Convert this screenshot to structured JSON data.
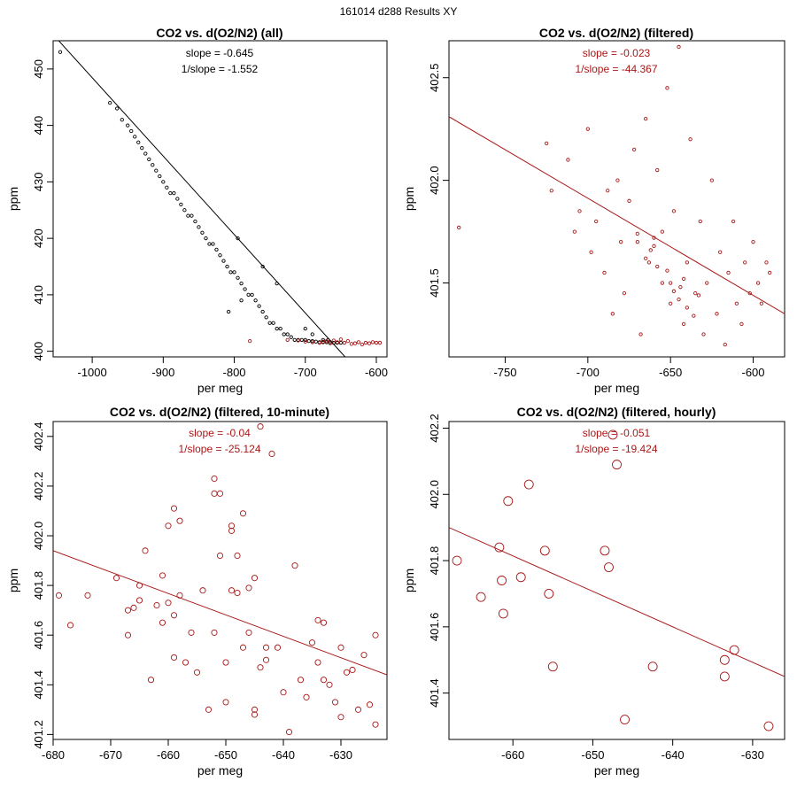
{
  "figure_title": "161014   d288   Results XY",
  "colors": {
    "black": "#000000",
    "red": "#a81818"
  },
  "chart_data": [
    {
      "type": "scatter",
      "title": "CO2 vs. d(O2/N2) (all)",
      "xlabel": "per meg",
      "ylabel": "ppm",
      "xlim": [
        -1055,
        -585
      ],
      "ylim": [
        399,
        455
      ],
      "xticks": [
        -1000,
        -900,
        -800,
        -700,
        -600
      ],
      "yticks": [
        400,
        410,
        420,
        430,
        440,
        450
      ],
      "annotation": [
        "slope = -0.645",
        "1/slope = -1.552"
      ],
      "annotation_color": "#000000",
      "fit_line": {
        "x": [
          -1050,
          -644
        ],
        "y": [
          455.4,
          399.0
        ],
        "color": "#000000"
      },
      "series": [
        {
          "name": "all",
          "color": "#000000",
          "x": [
            -1045,
            -975,
            -965,
            -958,
            -950,
            -945,
            -940,
            -935,
            -930,
            -925,
            -920,
            -915,
            -910,
            -905,
            -900,
            -895,
            -890,
            -885,
            -880,
            -875,
            -870,
            -865,
            -860,
            -855,
            -850,
            -845,
            -840,
            -835,
            -830,
            -825,
            -820,
            -815,
            -810,
            -805,
            -800,
            -795,
            -790,
            -785,
            -780,
            -775,
            -770,
            -765,
            -760,
            -755,
            -750,
            -745,
            -740,
            -735,
            -730,
            -725,
            -720,
            -715,
            -710,
            -705,
            -700,
            -695,
            -690,
            -685,
            -680,
            -675,
            -670,
            -665,
            -660,
            -655,
            -650,
            -808,
            -790,
            -795,
            -760,
            -740,
            -700,
            -690,
            -675,
            -668
          ],
          "y": [
            453,
            444,
            443,
            441,
            440,
            439,
            438,
            437,
            436,
            435,
            434,
            433,
            432,
            431,
            430,
            429,
            428,
            428,
            427,
            426,
            425,
            424,
            424,
            423,
            422,
            421,
            420,
            419,
            419,
            418,
            417,
            416,
            415,
            414,
            414,
            413,
            412,
            411,
            410,
            410,
            409,
            408,
            407,
            406,
            405,
            405,
            404,
            404,
            403,
            403,
            402.5,
            402,
            402,
            402,
            402,
            401.8,
            401.8,
            401.7,
            401.6,
            401.6,
            401.6,
            401.6,
            401.5,
            401.5,
            401.5,
            407,
            409,
            420,
            415,
            412,
            404,
            403,
            402,
            402
          ]
        },
        {
          "name": "filtered",
          "color": "#a81818",
          "x": [
            -778,
            -725,
            -710,
            -700,
            -690,
            -680,
            -675,
            -670,
            -665,
            -660,
            -655,
            -650,
            -645,
            -640,
            -635,
            -630,
            -625,
            -620,
            -615,
            -610,
            -605,
            -600,
            -595
          ],
          "y": [
            401.8,
            402.0,
            401.9,
            401.7,
            401.6,
            401.5,
            401.7,
            401.8,
            401.4,
            401.9,
            401.6,
            402.1,
            401.5,
            401.8,
            401.3,
            401.4,
            401.6,
            401.2,
            401.5,
            401.4,
            401.6,
            401.5,
            401.5
          ]
        }
      ]
    },
    {
      "type": "scatter",
      "title": "CO2 vs. d(O2/N2) (filtered)",
      "xlabel": "per meg",
      "ylabel": "ppm",
      "xlim": [
        -784,
        -581
      ],
      "ylim": [
        401.14,
        402.68
      ],
      "xticks": [
        -750,
        -700,
        -650,
        -600
      ],
      "yticks": [
        401.5,
        402.0,
        402.5
      ],
      "annotation": [
        "slope = -0.023",
        "1/slope = -44.367"
      ],
      "annotation_color": "#a81818",
      "fit_line": {
        "x": [
          -784,
          -581
        ],
        "y": [
          402.31,
          401.35
        ],
        "color": "#a81818"
      },
      "series": [
        {
          "name": "filtered",
          "color": "#a81818",
          "x": [
            -778,
            -725,
            -722,
            -712,
            -708,
            -705,
            -700,
            -698,
            -695,
            -690,
            -688,
            -685,
            -682,
            -680,
            -678,
            -675,
            -672,
            -670,
            -668,
            -665,
            -663,
            -660,
            -658,
            -655,
            -652,
            -650,
            -648,
            -645,
            -642,
            -640,
            -638,
            -635,
            -632,
            -630,
            -628,
            -625,
            -622,
            -620,
            -617,
            -615,
            -612,
            -610,
            -607,
            -605,
            -602,
            -600,
            -597,
            -595,
            -592,
            -590,
            -660,
            -655,
            -650,
            -645,
            -640,
            -665,
            -658,
            -648,
            -642,
            -636,
            -670,
            -662,
            -652,
            -644,
            -633
          ],
          "y": [
            401.77,
            402.18,
            401.95,
            402.1,
            401.75,
            401.85,
            402.25,
            401.65,
            401.8,
            401.55,
            401.95,
            401.35,
            402.0,
            401.7,
            401.45,
            401.9,
            402.15,
            401.7,
            401.25,
            402.3,
            401.6,
            401.72,
            402.05,
            401.5,
            402.45,
            401.4,
            401.85,
            402.65,
            401.3,
            401.6,
            402.2,
            401.45,
            401.8,
            401.25,
            401.5,
            402.0,
            401.35,
            401.65,
            401.2,
            401.55,
            401.8,
            401.4,
            401.3,
            401.6,
            401.45,
            401.7,
            401.5,
            401.4,
            401.6,
            401.55,
            401.68,
            401.75,
            401.5,
            401.42,
            401.38,
            401.62,
            401.58,
            401.46,
            401.52,
            401.34,
            401.74,
            401.66,
            401.56,
            401.48,
            401.44
          ]
        }
      ]
    },
    {
      "type": "scatter",
      "title": "CO2 vs. d(O2/N2) (filtered, 10-minute)",
      "xlabel": "per meg",
      "ylabel": "ppm",
      "xlim": [
        -680,
        -622
      ],
      "ylim": [
        401.18,
        402.46
      ],
      "xticks": [
        -680,
        -670,
        -660,
        -650,
        -640,
        -630
      ],
      "yticks": [
        401.2,
        401.4,
        401.6,
        401.8,
        402.0,
        402.2,
        402.4
      ],
      "annotation": [
        "slope = -0.04",
        "1/slope = -25.124"
      ],
      "annotation_color": "#a81818",
      "fit_line": {
        "x": [
          -680,
          -622
        ],
        "y": [
          401.94,
          401.44
        ],
        "color": "#a81818"
      },
      "series": [
        {
          "name": "10-minute",
          "color": "#a81818",
          "x": [
            -679,
            -677,
            -674,
            -669,
            -667,
            -667,
            -666,
            -665,
            -665,
            -664,
            -663,
            -662,
            -661,
            -661,
            -660,
            -660,
            -659,
            -659,
            -659,
            -658,
            -658,
            -657,
            -656,
            -655,
            -654,
            -653,
            -652,
            -652,
            -652,
            -651,
            -651,
            -650,
            -650,
            -649,
            -649,
            -649,
            -648,
            -648,
            -647,
            -647,
            -646,
            -646,
            -645,
            -645,
            -645,
            -644,
            -644,
            -643,
            -643,
            -642,
            -641,
            -640,
            -639,
            -638,
            -637,
            -636,
            -635,
            -634,
            -634,
            -633,
            -633,
            -632,
            -631,
            -630,
            -630,
            -629,
            -628,
            -627,
            -626,
            -625,
            -624,
            -624
          ],
          "y": [
            401.76,
            401.64,
            401.76,
            401.83,
            401.7,
            401.6,
            401.71,
            401.74,
            401.8,
            401.94,
            401.42,
            401.72,
            401.65,
            401.84,
            402.04,
            401.73,
            401.68,
            401.51,
            402.11,
            401.76,
            402.06,
            401.49,
            401.61,
            401.45,
            401.78,
            401.3,
            402.23,
            402.17,
            401.61,
            401.92,
            402.17,
            401.49,
            401.33,
            401.78,
            402.04,
            402.02,
            401.92,
            401.77,
            401.55,
            402.09,
            401.61,
            401.79,
            401.3,
            401.83,
            401.28,
            402.44,
            401.47,
            401.5,
            401.55,
            402.33,
            401.55,
            401.37,
            401.21,
            401.88,
            401.42,
            401.35,
            401.57,
            401.66,
            401.49,
            401.65,
            401.42,
            401.4,
            401.33,
            401.55,
            401.27,
            401.45,
            401.46,
            401.3,
            401.52,
            401.32,
            401.24,
            401.6
          ]
        }
      ]
    },
    {
      "type": "scatter",
      "title": "CO2 vs. d(O2/N2) (filtered, hourly)",
      "xlabel": "per meg",
      "ylabel": "ppm",
      "xlim": [
        -668,
        -626
      ],
      "ylim": [
        401.26,
        402.22
      ],
      "xticks": [
        -660,
        -650,
        -640,
        -630
      ],
      "yticks": [
        401.4,
        401.6,
        401.8,
        402.0,
        402.2
      ],
      "annotation": [
        "slope = -0.051",
        "1/slope = -19.424"
      ],
      "annotation_color": "#a81818",
      "fit_line": {
        "x": [
          -668,
          -626
        ],
        "y": [
          401.9,
          401.45
        ],
        "color": "#a81818"
      },
      "series": [
        {
          "name": "hourly",
          "color": "#a81818",
          "x": [
            -667,
            -664,
            -661.7,
            -661.4,
            -661.2,
            -660.6,
            -659,
            -658,
            -656,
            -655.5,
            -655,
            -648.5,
            -648,
            -647.5,
            -647,
            -646,
            -642.5,
            -633.5,
            -633.5,
            -632.3,
            -628
          ],
          "y": [
            401.8,
            401.69,
            401.84,
            401.74,
            401.64,
            401.98,
            401.75,
            402.03,
            401.83,
            401.7,
            401.48,
            401.83,
            401.78,
            402.18,
            402.09,
            401.32,
            401.48,
            401.5,
            401.45,
            401.53,
            401.3
          ]
        }
      ]
    }
  ]
}
